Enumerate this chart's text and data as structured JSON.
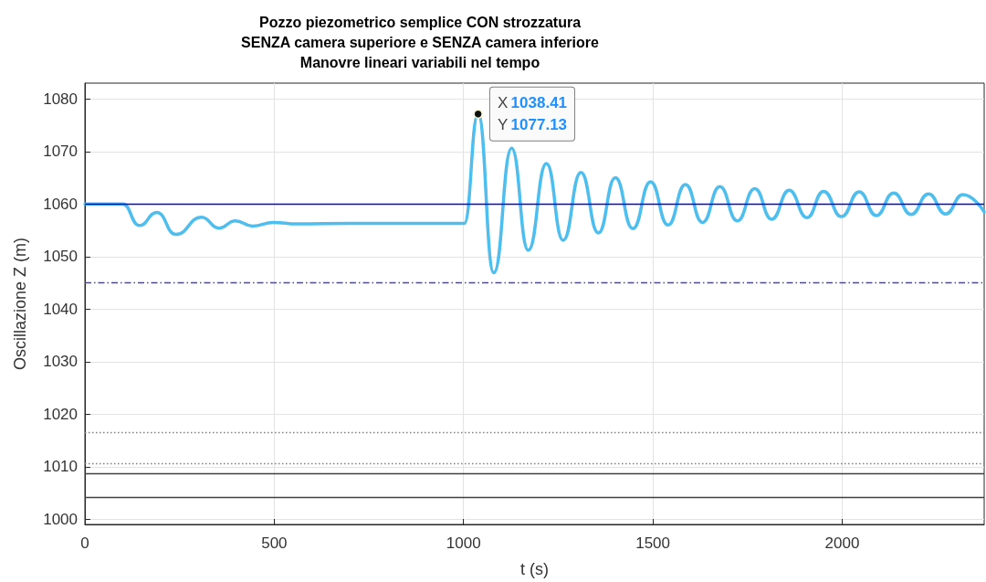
{
  "chart_data": {
    "type": "line",
    "title": "Pozzo piezometrico semplice CON strozzatura\nSENZA camera superiore e SENZA camera inferiore\nManovre lineari variabili nel tempo",
    "xlabel": "t (s)",
    "ylabel": "Oscillazione Z (m)",
    "series": [
      {
        "color": "#4dbeee",
        "x": [
          0,
          100,
          144,
          190,
          240,
          308,
          354,
          397,
          443,
          498,
          560,
          700,
          850,
          1002,
          1038.41,
          1080,
          1127,
          1171,
          1219,
          1263,
          1310,
          1356,
          1401,
          1447,
          1494,
          1540,
          1586,
          1631,
          1677,
          1723,
          1769,
          1814,
          1860,
          1907,
          1951,
          1998,
          2045,
          2090,
          2136,
          2182,
          2228,
          2273,
          2319,
          2375
        ],
        "values": [
          1060,
          1060,
          1055.9,
          1058.4,
          1054.2,
          1057.5,
          1055.4,
          1056.8,
          1055.8,
          1056.5,
          1056.2,
          1056.3,
          1056.3,
          1056.3,
          1077.13,
          1046.9,
          1070.6,
          1051.2,
          1067.7,
          1053.1,
          1066.0,
          1054.5,
          1065.0,
          1055.3,
          1064.2,
          1056.0,
          1063.7,
          1056.5,
          1063.3,
          1056.8,
          1062.9,
          1057.1,
          1062.6,
          1057.4,
          1062.4,
          1057.6,
          1062.3,
          1057.8,
          1062.1,
          1058.0,
          1061.9,
          1058.1,
          1061.8,
          1058.5
        ]
      }
    ],
    "ref_lines": [
      {
        "axis": "y",
        "value": 1060,
        "color": "#0000ff",
        "line_style": "solid"
      },
      {
        "axis": "y",
        "value": 1045,
        "color": "#4040e0",
        "line_style": "dashed"
      },
      {
        "axis": "y",
        "value": 1016.6,
        "color": "#808080",
        "line_style": "dotted"
      },
      {
        "axis": "y",
        "value": 1010.6,
        "color": "#808080",
        "line_style": "dotted"
      },
      {
        "axis": "y",
        "value": 1008.7,
        "color": "#404040",
        "line_style": "solid"
      },
      {
        "axis": "y",
        "value": 1004.2,
        "color": "#404040",
        "line_style": "solid"
      }
    ],
    "annotations": [
      {
        "text": "X 1038.41\nY 1077.13",
        "x": 1038.41,
        "y": 1077.13
      }
    ],
    "xlim": [
      0,
      2375
    ],
    "ylim": [
      999,
      1083
    ],
    "xticks": [
      0,
      500,
      1000,
      1500,
      2000
    ],
    "yticks": [
      1000,
      1010,
      1020,
      1030,
      1040,
      1050,
      1060,
      1070,
      1080
    ],
    "grid": true,
    "marker": "none",
    "line_style": "solid"
  }
}
